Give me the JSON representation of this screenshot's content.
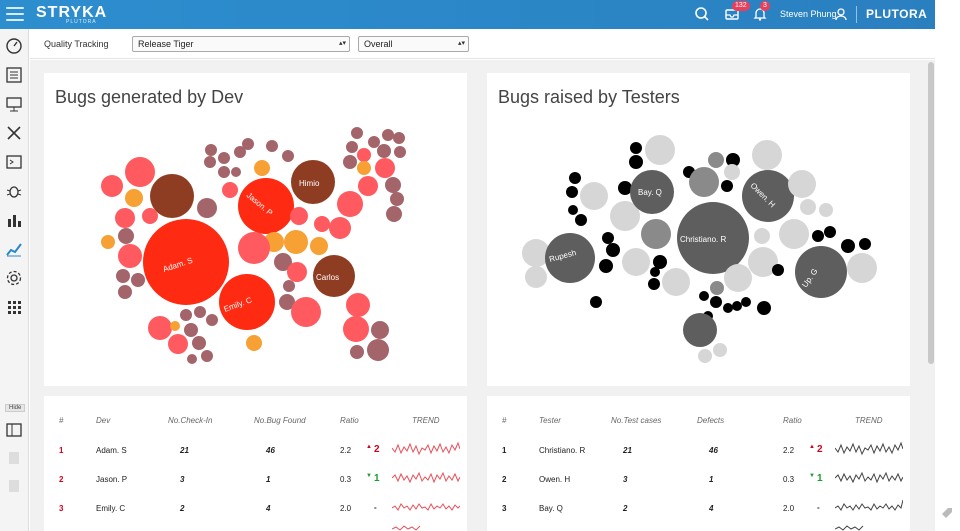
{
  "header": {
    "brand": "STRYKA",
    "brand_sub": "PLUTORA",
    "inbox_count": "132",
    "notif_count": "3",
    "user_name": "Steven Phung",
    "logo": "PLUTORA",
    "accent": "#2b87c8"
  },
  "filters": {
    "label": "Quality Tracking",
    "release": "Release Tiger",
    "scope": "Overall"
  },
  "sidebar": {
    "hide_label": "Hide"
  },
  "panels": {
    "dev_title": "Bugs generated by Dev",
    "tester_title": "Bugs raised by Testers"
  },
  "chart_data": [
    {
      "type": "bubble",
      "title": "Bugs generated by Dev",
      "labels": [
        "Adam. S",
        "Jason. P",
        "Emily. C",
        "Himio",
        "Carlos"
      ],
      "colors": [
        "#ff2a12",
        "#ff5a5f",
        "#a04030",
        "#8f3d22",
        "#f7a034",
        "#a3656a"
      ]
    },
    {
      "type": "bubble",
      "title": "Bugs raised by Testers",
      "labels": [
        "Christiano. R",
        "Bay. Q",
        "Owen. H",
        "Rupesh",
        "Up. G"
      ],
      "colors": [
        "#555555",
        "#8a8a8a",
        "#c9c9c9",
        "#000000"
      ]
    }
  ],
  "dev_table": {
    "headers": [
      "#",
      "Dev",
      "No.Check-In",
      "No.Bug Found",
      "Ratio",
      "TREND"
    ],
    "rows": [
      {
        "rank": "1",
        "name": "Adam. S",
        "checkin": "21",
        "bugs": "46",
        "ratio": "2.2",
        "trend_dir": "▲",
        "trend_val": "2"
      },
      {
        "rank": "2",
        "name": "Jason. P",
        "checkin": "3",
        "bugs": "1",
        "ratio": "0.3",
        "trend_dir": "▼",
        "trend_val": "1"
      },
      {
        "rank": "3",
        "name": "Emily. C",
        "checkin": "2",
        "bugs": "4",
        "ratio": "2.0",
        "trend_dir": "",
        "trend_val": "-"
      }
    ]
  },
  "tester_table": {
    "headers": [
      "#",
      "Tester",
      "No.Test cases",
      "Defects",
      "Ratio",
      "TREND"
    ],
    "rows": [
      {
        "rank": "1",
        "name": "Christiano. R",
        "cases": "21",
        "defects": "46",
        "ratio": "2.2",
        "trend_dir": "▲",
        "trend_val": "2"
      },
      {
        "rank": "2",
        "name": "Owen. H",
        "cases": "3",
        "defects": "1",
        "ratio": "0.3",
        "trend_dir": "▼",
        "trend_val": "1"
      },
      {
        "rank": "3",
        "name": "Bay. Q",
        "cases": "2",
        "defects": "4",
        "ratio": "2.0",
        "trend_dir": "",
        "trend_val": "-"
      }
    ]
  }
}
